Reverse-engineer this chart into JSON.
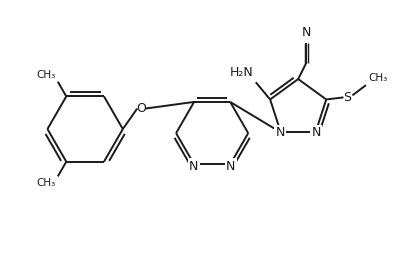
{
  "background": "#ffffff",
  "line_color": "#1a1a1a",
  "line_width": 1.4,
  "figsize": [
    4.12,
    2.54
  ],
  "dpi": 100,
  "xlim": [
    0,
    10
  ],
  "ylim": [
    0,
    6.2
  ]
}
